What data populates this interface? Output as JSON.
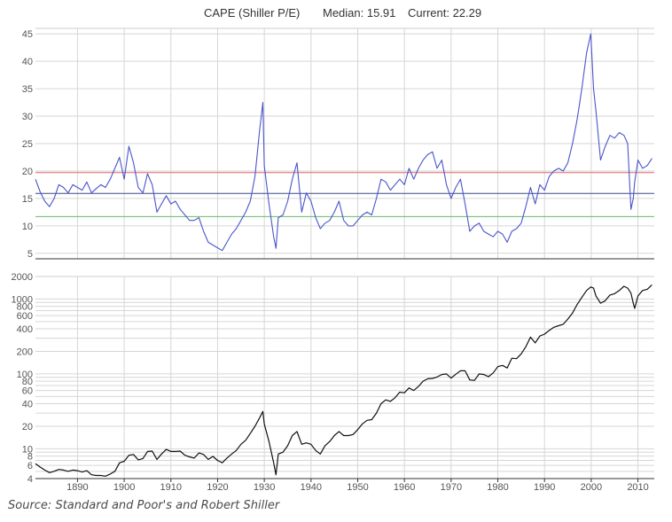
{
  "chart_data": [
    {
      "type": "line",
      "title": "CAPE (Shiller P/E)",
      "median_label": "Median: 15.91",
      "current_label": "Current: 22.29",
      "ylim": [
        4,
        46
      ],
      "xlim": [
        1881,
        2013.5
      ],
      "y_ticks": [
        5,
        10,
        15,
        20,
        25,
        30,
        35,
        40,
        45
      ],
      "reference_lines": [
        {
          "name": "upper-band",
          "value": 19.7,
          "color": "#e06666"
        },
        {
          "name": "median",
          "value": 15.91,
          "color": "#3b4a8a"
        },
        {
          "name": "lower-band",
          "value": 11.7,
          "color": "#66bb66"
        }
      ],
      "series_color": "#4a55cc",
      "series": [
        {
          "name": "CAPE",
          "x": [
            1881,
            1882,
            1883,
            1884,
            1885,
            1886,
            1887,
            1888,
            1889,
            1890,
            1891,
            1892,
            1893,
            1894,
            1895,
            1896,
            1897,
            1898,
            1899,
            1900,
            1901,
            1902,
            1903,
            1904,
            1905,
            1906,
            1907,
            1908,
            1909,
            1910,
            1911,
            1912,
            1913,
            1914,
            1915,
            1916,
            1917,
            1918,
            1919,
            1920,
            1921,
            1922,
            1923,
            1924,
            1925,
            1926,
            1927,
            1928,
            1929,
            1929.7,
            1930,
            1931,
            1932,
            1932.5,
            1933,
            1934,
            1935,
            1936,
            1937,
            1938,
            1939,
            1940,
            1941,
            1942,
            1943,
            1944,
            1945,
            1946,
            1947,
            1948,
            1949,
            1950,
            1951,
            1952,
            1953,
            1954,
            1955,
            1956,
            1957,
            1958,
            1959,
            1960,
            1961,
            1962,
            1963,
            1964,
            1965,
            1966,
            1967,
            1968,
            1969,
            1970,
            1971,
            1972,
            1973,
            1974,
            1975,
            1976,
            1977,
            1978,
            1979,
            1980,
            1981,
            1982,
            1983,
            1984,
            1985,
            1986,
            1987,
            1988,
            1989,
            1990,
            1991,
            1992,
            1993,
            1994,
            1995,
            1996,
            1997,
            1998,
            1999,
            1999.9,
            2000.5,
            2001,
            2002,
            2003,
            2004,
            2005,
            2006,
            2007,
            2007.8,
            2008.5,
            2009,
            2009.3,
            2010,
            2011,
            2012,
            2013
          ],
          "values": [
            18.5,
            16.2,
            14.5,
            13.5,
            15.0,
            17.5,
            17.0,
            16.0,
            17.5,
            17.0,
            16.5,
            18.0,
            16.0,
            16.8,
            17.5,
            17.0,
            18.5,
            20.5,
            22.5,
            18.5,
            24.5,
            21.5,
            17.0,
            16.0,
            19.5,
            17.5,
            12.5,
            14.0,
            15.5,
            14.0,
            14.5,
            13.0,
            12.0,
            11.0,
            11.0,
            11.5,
            9.0,
            7.0,
            6.5,
            6.0,
            5.5,
            7.0,
            8.5,
            9.5,
            11.0,
            12.5,
            14.5,
            19.0,
            27.5,
            32.5,
            21.0,
            14.0,
            8.0,
            5.9,
            11.5,
            12.0,
            14.5,
            18.5,
            21.5,
            12.5,
            16.0,
            14.5,
            11.5,
            9.5,
            10.5,
            11.0,
            12.5,
            14.5,
            11.0,
            10.0,
            10.0,
            11.0,
            12.0,
            12.5,
            12.0,
            15.0,
            18.5,
            18.0,
            16.5,
            17.5,
            18.5,
            17.5,
            20.5,
            18.5,
            20.5,
            22.0,
            23.0,
            23.5,
            20.5,
            22.0,
            17.5,
            15.0,
            17.0,
            18.5,
            14.0,
            9.0,
            10.0,
            10.5,
            9.0,
            8.5,
            8.0,
            9.0,
            8.5,
            7.0,
            9.0,
            9.5,
            10.5,
            13.5,
            17.0,
            14.0,
            17.5,
            16.5,
            19.0,
            20.0,
            20.5,
            20.0,
            21.5,
            25.0,
            29.5,
            35.0,
            41.5,
            45.0,
            35.0,
            31.0,
            22.0,
            24.5,
            26.5,
            26.0,
            27.0,
            26.5,
            25.0,
            13.0,
            15.0,
            18.0,
            22.0,
            20.5,
            21.0,
            22.3
          ]
        }
      ]
    },
    {
      "type": "line",
      "scale": "log",
      "ylim": [
        4,
        2000
      ],
      "xlim": [
        1881,
        2013.5
      ],
      "y_ticks": [
        2000,
        1000,
        800,
        600,
        400,
        200,
        100,
        80,
        60,
        40,
        20,
        10,
        8,
        6,
        4
      ],
      "minor_y_gridlines": [
        2000,
        1000,
        900,
        800,
        700,
        600,
        500,
        400,
        300,
        200,
        100,
        90,
        80,
        70,
        60,
        50,
        40,
        30,
        20,
        10,
        9,
        8,
        7,
        6,
        5,
        4
      ],
      "x_ticks": [
        1890,
        1900,
        1910,
        1920,
        1930,
        1940,
        1950,
        1960,
        1970,
        1980,
        1990,
        2000,
        2010
      ],
      "x_tick_labels": [
        "1890",
        "1900",
        "1910",
        "1920",
        "1930",
        "1940",
        "1950",
        "1960",
        "1970",
        "1980",
        "1990",
        "2000",
        "2010"
      ],
      "series_color": "#111111",
      "series": [
        {
          "name": "S&P Composite",
          "x": [
            1881,
            1882,
            1883,
            1884,
            1885,
            1886,
            1887,
            1888,
            1889,
            1890,
            1891,
            1892,
            1893,
            1894,
            1895,
            1896,
            1897,
            1898,
            1899,
            1900,
            1901,
            1902,
            1903,
            1904,
            1905,
            1906,
            1907,
            1908,
            1909,
            1910,
            1911,
            1912,
            1913,
            1914,
            1915,
            1916,
            1917,
            1918,
            1919,
            1920,
            1921,
            1922,
            1923,
            1924,
            1925,
            1926,
            1927,
            1928,
            1929,
            1929.7,
            1930,
            1931,
            1932,
            1932.5,
            1933,
            1934,
            1935,
            1936,
            1937,
            1938,
            1939,
            1940,
            1941,
            1942,
            1943,
            1944,
            1945,
            1946,
            1947,
            1948,
            1949,
            1950,
            1951,
            1952,
            1953,
            1954,
            1955,
            1956,
            1957,
            1958,
            1959,
            1960,
            1961,
            1962,
            1963,
            1964,
            1965,
            1966,
            1967,
            1968,
            1969,
            1970,
            1971,
            1972,
            1973,
            1974,
            1975,
            1976,
            1977,
            1978,
            1979,
            1980,
            1981,
            1982,
            1983,
            1984,
            1985,
            1986,
            1987,
            1988,
            1989,
            1990,
            1991,
            1992,
            1993,
            1994,
            1995,
            1996,
            1997,
            1998,
            1999,
            1999.9,
            2000.5,
            2001,
            2002,
            2003,
            2004,
            2005,
            2006,
            2007,
            2007.8,
            2008.5,
            2009,
            2009.3,
            2010,
            2011,
            2012,
            2013
          ],
          "values": [
            6.3,
            5.7,
            5.2,
            4.8,
            5.0,
            5.3,
            5.2,
            5.0,
            5.2,
            5.1,
            4.9,
            5.1,
            4.5,
            4.4,
            4.4,
            4.3,
            4.6,
            5.0,
            6.5,
            6.8,
            8.2,
            8.4,
            7.1,
            7.4,
            9.2,
            9.3,
            7.2,
            8.5,
            9.8,
            9.2,
            9.2,
            9.3,
            8.2,
            7.8,
            7.5,
            8.8,
            8.4,
            7.2,
            7.9,
            7.0,
            6.5,
            7.5,
            8.5,
            9.5,
            11.5,
            13.0,
            16.0,
            20.0,
            26.0,
            31.5,
            21.5,
            12.5,
            6.5,
            4.5,
            8.5,
            9.0,
            11.0,
            15.0,
            17.0,
            11.5,
            12.0,
            11.5,
            9.5,
            8.5,
            11.0,
            12.5,
            15.0,
            17.0,
            15.0,
            15.0,
            15.5,
            18.0,
            21.5,
            24.0,
            24.5,
            30.0,
            40.0,
            45.0,
            43.0,
            48.0,
            57.0,
            56.0,
            65.0,
            60.0,
            68.0,
            80.0,
            86.0,
            87.0,
            91.0,
            98.0,
            100.0,
            88.0,
            99.0,
            110.0,
            110.0,
            83.0,
            82.0,
            100.0,
            98.0,
            92.0,
            103.0,
            125.0,
            130.0,
            120.0,
            162.0,
            160.0,
            185.0,
            230.0,
            310.0,
            260.0,
            320.0,
            340.0,
            380.0,
            420.0,
            440.0,
            460.0,
            540.0,
            650.0,
            850.0,
            1050.0,
            1300.0,
            1450.0,
            1400.0,
            1100.0,
            880.0,
            950.0,
            1130.0,
            1180.0,
            1300.0,
            1480.0,
            1400.0,
            1200.0,
            880.0,
            750.0,
            1100.0,
            1300.0,
            1350.0,
            1550.0
          ]
        }
      ]
    }
  ],
  "source_text": "Source: Standard and Poor's and Robert Shiller"
}
